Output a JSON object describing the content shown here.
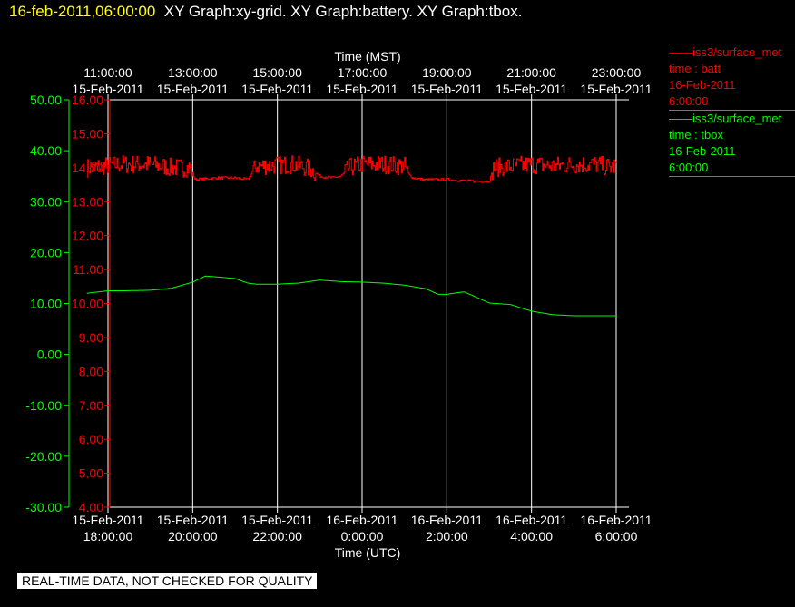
{
  "header": {
    "timestamp": "16-feb-2011,06:00:00",
    "titles": "XY Graph:xy-grid.  XY Graph:battery.  XY Graph:tbox."
  },
  "legend": [
    {
      "source": "iss3/surface_met",
      "var": "time : batt",
      "date": "16-Feb-2011",
      "time": "6:00:00",
      "color": "#ff0000"
    },
    {
      "source": "iss3/surface_met",
      "var": "time : tbox",
      "date": "16-Feb-2011",
      "time": "6:00:00",
      "color": "#00ff00"
    }
  ],
  "notice": "REAL-TIME DATA, NOT CHECKED FOR QUALITY",
  "chart_data": {
    "type": "line",
    "xlabel_top": "Time (MST)",
    "xlabel_bottom": "Time (UTC)",
    "xlim_utc_hours": [
      17.5,
      30.3
    ],
    "top_ticks": [
      {
        "time": "11:00:00",
        "date": "15-Feb-2011",
        "utc_hour": 18
      },
      {
        "time": "13:00:00",
        "date": "15-Feb-2011",
        "utc_hour": 20
      },
      {
        "time": "15:00:00",
        "date": "15-Feb-2011",
        "utc_hour": 22
      },
      {
        "time": "17:00:00",
        "date": "15-Feb-2011",
        "utc_hour": 24
      },
      {
        "time": "19:00:00",
        "date": "15-Feb-2011",
        "utc_hour": 26
      },
      {
        "time": "21:00:00",
        "date": "15-Feb-2011",
        "utc_hour": 28
      },
      {
        "time": "23:00:00",
        "date": "15-Feb-2011",
        "utc_hour": 30
      }
    ],
    "bottom_ticks": [
      {
        "date": "15-Feb-2011",
        "time": "18:00:00",
        "utc_hour": 18
      },
      {
        "date": "15-Feb-2011",
        "time": "20:00:00",
        "utc_hour": 20
      },
      {
        "date": "15-Feb-2011",
        "time": "22:00:00",
        "utc_hour": 22
      },
      {
        "date": "16-Feb-2011",
        "time": "0:00:00",
        "utc_hour": 24
      },
      {
        "date": "16-Feb-2011",
        "time": "2:00:00",
        "utc_hour": 26
      },
      {
        "date": "16-Feb-2011",
        "time": "4:00:00",
        "utc_hour": 28
      },
      {
        "date": "16-Feb-2011",
        "time": "6:00:00",
        "utc_hour": 30
      }
    ],
    "grid": "vertical",
    "y_axes": [
      {
        "name": "tbox",
        "color": "#00ff00",
        "ylim": [
          -30,
          50
        ],
        "ticks": [
          "50.00",
          "40.00",
          "30.00",
          "20.00",
          "10.00",
          "0.00",
          "-10.00",
          "-20.00",
          "-30.00"
        ]
      },
      {
        "name": "batt",
        "color": "#ff0000",
        "ylim": [
          4,
          16
        ],
        "ticks": [
          "16.00",
          "15.00",
          "14.00",
          "13.00",
          "12.00",
          "11.00",
          "10.00",
          "9.00",
          "8.00",
          "7.00",
          "6.00",
          "5.00",
          "4.00"
        ]
      }
    ],
    "series": [
      {
        "name": "batt",
        "axis": "batt",
        "color": "#ff0000",
        "noise": 0.28,
        "x": [
          17.5,
          18.3,
          19.0,
          19.5,
          19.95,
          20.05,
          20.6,
          21.0,
          21.3,
          21.5,
          22.4,
          22.8,
          23.0,
          23.3,
          23.5,
          23.7,
          24.0,
          24.5,
          25.0,
          25.1,
          25.2,
          25.45,
          25.5,
          26.0,
          26.6,
          27.0,
          27.1,
          27.6,
          28.0,
          28.5,
          29.0,
          29.5,
          29.9,
          30.0
        ],
        "y": [
          14.0,
          14.1,
          14.1,
          14.0,
          14.0,
          13.65,
          13.7,
          13.7,
          13.65,
          14.05,
          14.1,
          13.95,
          13.75,
          13.7,
          13.75,
          14.0,
          14.1,
          14.1,
          14.05,
          13.8,
          13.7,
          13.65,
          13.65,
          13.65,
          13.6,
          13.6,
          14.0,
          14.05,
          14.1,
          14.05,
          14.1,
          14.1,
          14.0,
          14.1
        ]
      },
      {
        "name": "tbox",
        "axis": "tbox",
        "color": "#00ff00",
        "noise": 0,
        "x": [
          17.5,
          18.0,
          18.4,
          19.0,
          19.5,
          20.0,
          20.3,
          20.6,
          21.0,
          21.3,
          21.5,
          22.0,
          22.5,
          23.0,
          23.5,
          24.0,
          24.5,
          25.0,
          25.5,
          25.8,
          26.0,
          26.4,
          26.6,
          27.0,
          27.5,
          28.0,
          28.5,
          29.0,
          29.5,
          30.0
        ],
        "y": [
          12.0,
          12.5,
          12.5,
          12.6,
          13.0,
          14.2,
          15.4,
          15.2,
          14.9,
          14.0,
          13.8,
          13.8,
          14.0,
          14.6,
          14.3,
          14.2,
          14.0,
          13.6,
          12.9,
          11.8,
          11.8,
          12.3,
          11.6,
          10.1,
          9.8,
          8.5,
          7.8,
          7.6,
          7.6,
          7.6
        ]
      }
    ]
  }
}
